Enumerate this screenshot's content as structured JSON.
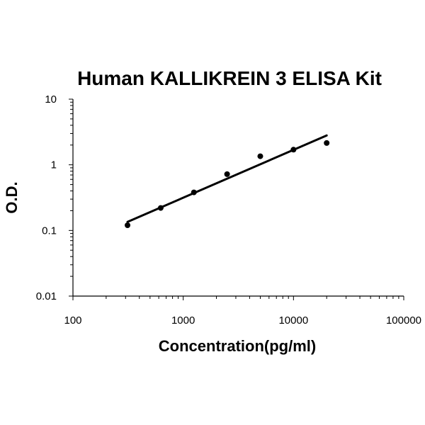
{
  "chart_data": {
    "type": "scatter",
    "title": "Human KALLIKREIN 3 ELISA Kit",
    "xlabel": "Concentration(pg/ml)",
    "ylabel": "O.D.",
    "x_scale": "log",
    "y_scale": "log",
    "xlim": [
      100,
      100000
    ],
    "ylim": [
      0.01,
      10
    ],
    "x_ticks": [
      "100",
      "1000",
      "10000",
      "100000"
    ],
    "y_ticks": [
      "0.01",
      "0.1",
      "1",
      "10"
    ],
    "grid": false,
    "legend": "none",
    "points": [
      {
        "x": 312.5,
        "y": 0.12
      },
      {
        "x": 625,
        "y": 0.22
      },
      {
        "x": 1250,
        "y": 0.38
      },
      {
        "x": 2500,
        "y": 0.72
      },
      {
        "x": 5000,
        "y": 1.35
      },
      {
        "x": 10000,
        "y": 1.7
      },
      {
        "x": 20000,
        "y": 2.15
      }
    ],
    "trendline": {
      "x": [
        312.5,
        20000
      ],
      "y": [
        0.135,
        2.8
      ]
    },
    "colors": {
      "points": "#000000",
      "trendline": "#000000",
      "axes": "#000000"
    }
  }
}
